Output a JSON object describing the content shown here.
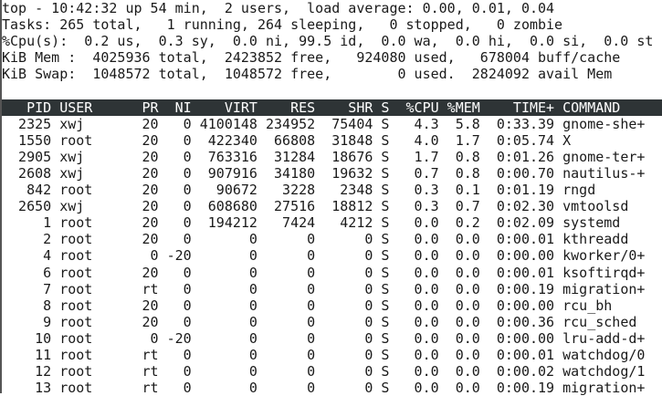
{
  "summary": {
    "uptime_line": "top - 10:42:32 up 54 min,  2 users,  load average: 0.00, 0.01, 0.04",
    "tasks_line": "Tasks: 265 total,   1 running, 264 sleeping,   0 stopped,   0 zombie",
    "cpu_line": "%Cpu(s):  0.2 us,  0.3 sy,  0.0 ni, 99.5 id,  0.0 wa,  0.0 hi,  0.0 si,  0.0 st",
    "mem_line": "KiB Mem :  4025936 total,  2423852 free,   924080 used,   678004 buff/cache",
    "swap_line": "KiB Swap:  1048572 total,  1048572 free,        0 used.  2824092 avail Mem"
  },
  "columns": [
    "PID",
    "USER",
    "PR",
    "NI",
    "VIRT",
    "RES",
    "SHR",
    "S",
    "%CPU",
    "%MEM",
    "TIME+",
    "COMMAND"
  ],
  "processes": [
    [
      "2325",
      "xwj",
      "20",
      "0",
      "4100148",
      "234952",
      "75404",
      "S",
      "4.3",
      "5.8",
      "0:33.39",
      "gnome-she+"
    ],
    [
      "1550",
      "root",
      "20",
      "0",
      "422340",
      "66808",
      "31848",
      "S",
      "4.0",
      "1.7",
      "0:05.74",
      "X"
    ],
    [
      "2905",
      "xwj",
      "20",
      "0",
      "763316",
      "31284",
      "18676",
      "S",
      "1.7",
      "0.8",
      "0:01.26",
      "gnome-ter+"
    ],
    [
      "2608",
      "xwj",
      "20",
      "0",
      "907916",
      "34180",
      "19632",
      "S",
      "0.7",
      "0.8",
      "0:00.70",
      "nautilus-+"
    ],
    [
      "842",
      "root",
      "20",
      "0",
      "90672",
      "3228",
      "2348",
      "S",
      "0.3",
      "0.1",
      "0:01.19",
      "rngd"
    ],
    [
      "2650",
      "xwj",
      "20",
      "0",
      "608680",
      "27516",
      "18812",
      "S",
      "0.3",
      "0.7",
      "0:02.30",
      "vmtoolsd"
    ],
    [
      "1",
      "root",
      "20",
      "0",
      "194212",
      "7424",
      "4212",
      "S",
      "0.0",
      "0.2",
      "0:02.09",
      "systemd"
    ],
    [
      "2",
      "root",
      "20",
      "0",
      "0",
      "0",
      "0",
      "S",
      "0.0",
      "0.0",
      "0:00.01",
      "kthreadd"
    ],
    [
      "4",
      "root",
      "0",
      "-20",
      "0",
      "0",
      "0",
      "S",
      "0.0",
      "0.0",
      "0:00.00",
      "kworker/0+"
    ],
    [
      "6",
      "root",
      "20",
      "0",
      "0",
      "0",
      "0",
      "S",
      "0.0",
      "0.0",
      "0:00.01",
      "ksoftirqd+"
    ],
    [
      "7",
      "root",
      "rt",
      "0",
      "0",
      "0",
      "0",
      "S",
      "0.0",
      "0.0",
      "0:00.19",
      "migration+"
    ],
    [
      "8",
      "root",
      "20",
      "0",
      "0",
      "0",
      "0",
      "S",
      "0.0",
      "0.0",
      "0:00.00",
      "rcu_bh"
    ],
    [
      "9",
      "root",
      "20",
      "0",
      "0",
      "0",
      "0",
      "S",
      "0.0",
      "0.0",
      "0:00.36",
      "rcu_sched"
    ],
    [
      "10",
      "root",
      "0",
      "-20",
      "0",
      "0",
      "0",
      "S",
      "0.0",
      "0.0",
      "0:00.00",
      "lru-add-d+"
    ],
    [
      "11",
      "root",
      "rt",
      "0",
      "0",
      "0",
      "0",
      "S",
      "0.0",
      "0.0",
      "0:00.01",
      "watchdog/0"
    ],
    [
      "12",
      "root",
      "rt",
      "0",
      "0",
      "0",
      "0",
      "S",
      "0.0",
      "0.0",
      "0:00.02",
      "watchdog/1"
    ],
    [
      "13",
      "root",
      "rt",
      "0",
      "0",
      "0",
      "0",
      "S",
      "0.0",
      "0.0",
      "0:00.19",
      "migration+"
    ]
  ],
  "colors": {
    "header_bg": "#2e3436",
    "header_fg": "#ffffff",
    "text": "#1a1a1a"
  }
}
